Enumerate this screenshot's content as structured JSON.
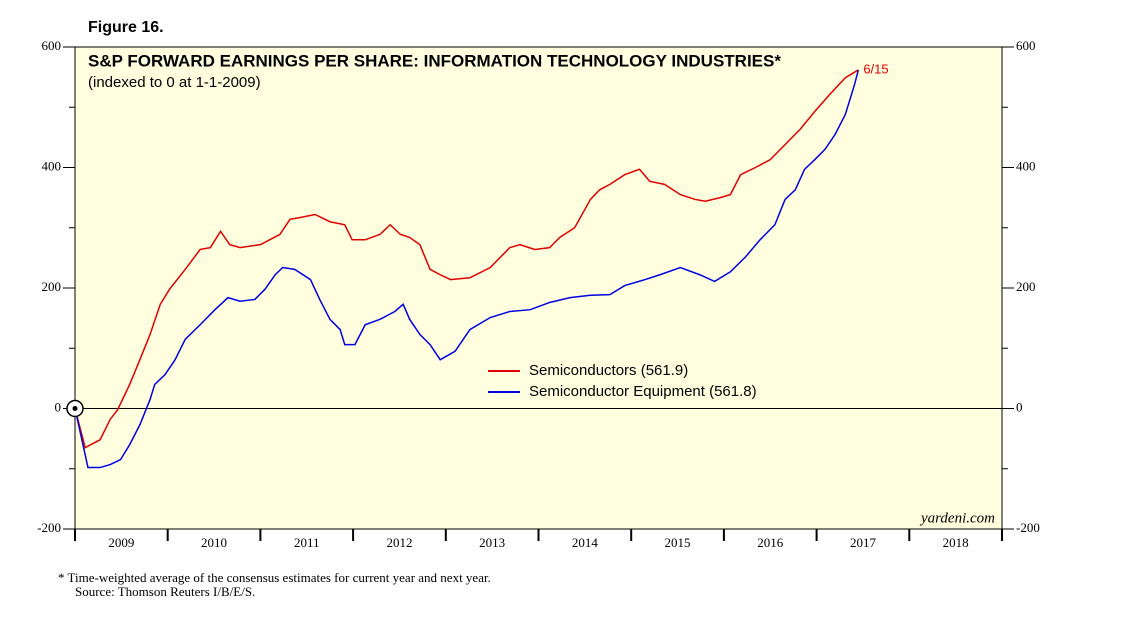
{
  "chart_data": {
    "type": "line",
    "figure_label": "Figure 16.",
    "title": "S&P FORWARD EARNINGS PER SHARE: INFORMATION TECHNOLOGY INDUSTRIES*",
    "subtitle": "(indexed to 0 at 1-1-2009)",
    "annotation": "6/15",
    "watermark": "yardeni.com",
    "footnotes": [
      "*  Time-weighted average of the consensus estimates for current year and next year.",
      "Source: Thomson Reuters I/B/E/S."
    ],
    "xlim": [
      2009,
      2019
    ],
    "xticks": [
      {
        "value": 2009.5,
        "label": "2009"
      },
      {
        "value": 2010.5,
        "label": "2010"
      },
      {
        "value": 2011.5,
        "label": "2011"
      },
      {
        "value": 2012.5,
        "label": "2012"
      },
      {
        "value": 2013.5,
        "label": "2013"
      },
      {
        "value": 2014.5,
        "label": "2014"
      },
      {
        "value": 2015.5,
        "label": "2015"
      },
      {
        "value": 2016.5,
        "label": "2016"
      },
      {
        "value": 2017.5,
        "label": "2017"
      },
      {
        "value": 2018.5,
        "label": "2018"
      }
    ],
    "ylim": [
      -200,
      600
    ],
    "yticks": [
      -200,
      0,
      200,
      400,
      600
    ],
    "yminorticks": [
      -100,
      100,
      300,
      500
    ],
    "series": [
      {
        "name": "Semiconductors (561.9)",
        "color": "#e00000",
        "x": [
          2009.0,
          2009.11,
          2009.27,
          2009.38,
          2009.46,
          2009.59,
          2009.7,
          2009.81,
          2009.92,
          2010.02,
          2010.19,
          2010.35,
          2010.46,
          2010.57,
          2010.67,
          2010.78,
          2011.0,
          2011.1,
          2011.21,
          2011.32,
          2011.43,
          2011.59,
          2011.75,
          2011.91,
          2011.99,
          2012.13,
          2012.29,
          2012.4,
          2012.51,
          2012.61,
          2012.72,
          2012.83,
          2012.94,
          2013.05,
          2013.26,
          2013.48,
          2013.69,
          2013.8,
          2013.96,
          2014.12,
          2014.23,
          2014.39,
          2014.56,
          2014.66,
          2014.77,
          2014.93,
          2015.09,
          2015.2,
          2015.36,
          2015.53,
          2015.69,
          2015.8,
          2015.96,
          2016.07,
          2016.18,
          2016.34,
          2016.5,
          2016.66,
          2016.82,
          2016.98,
          2017.14,
          2017.31,
          2017.45
        ],
        "values": [
          0,
          -65,
          -52,
          -18,
          -2,
          40,
          81,
          123,
          173,
          198,
          231,
          264,
          267,
          294,
          272,
          267,
          272,
          280,
          289,
          314,
          317,
          322,
          310,
          305,
          280,
          280,
          289,
          305,
          289,
          284,
          272,
          231,
          222,
          214,
          217,
          234,
          267,
          272,
          264,
          267,
          284,
          300,
          347,
          363,
          372,
          388,
          397,
          377,
          372,
          355,
          347,
          344,
          350,
          355,
          388,
          400,
          413,
          438,
          463,
          493,
          521,
          549,
          561.9
        ]
      },
      {
        "name": "Semiconductor Equipment (561.8)",
        "color": "#0000e0",
        "x": [
          2009.0,
          2009.14,
          2009.27,
          2009.38,
          2009.49,
          2009.59,
          2009.7,
          2009.81,
          2009.86,
          2009.97,
          2010.08,
          2010.19,
          2010.35,
          2010.51,
          2010.65,
          2010.78,
          2010.94,
          2011.05,
          2011.16,
          2011.24,
          2011.37,
          2011.54,
          2011.64,
          2011.75,
          2011.86,
          2011.91,
          2012.02,
          2012.13,
          2012.29,
          2012.45,
          2012.54,
          2012.61,
          2012.72,
          2012.83,
          2012.94,
          2013.1,
          2013.26,
          2013.48,
          2013.69,
          2013.91,
          2014.12,
          2014.34,
          2014.56,
          2014.77,
          2014.93,
          2015.15,
          2015.31,
          2015.53,
          2015.74,
          2015.9,
          2016.07,
          2016.23,
          2016.39,
          2016.55,
          2016.66,
          2016.77,
          2016.87,
          2016.98,
          2017.09,
          2017.2,
          2017.31,
          2017.41,
          2017.45
        ],
        "values": [
          0,
          -98,
          -98,
          -93,
          -85,
          -60,
          -27,
          15,
          40,
          56,
          81,
          115,
          139,
          164,
          184,
          178,
          181,
          198,
          222,
          234,
          231,
          214,
          181,
          148,
          131,
          106,
          106,
          139,
          148,
          161,
          173,
          148,
          123,
          106,
          81,
          95,
          131,
          151,
          161,
          164,
          176,
          184,
          188,
          189,
          204,
          214,
          222,
          234,
          222,
          211,
          227,
          251,
          280,
          305,
          347,
          363,
          397,
          413,
          430,
          455,
          488,
          538,
          561.8
        ]
      }
    ]
  }
}
